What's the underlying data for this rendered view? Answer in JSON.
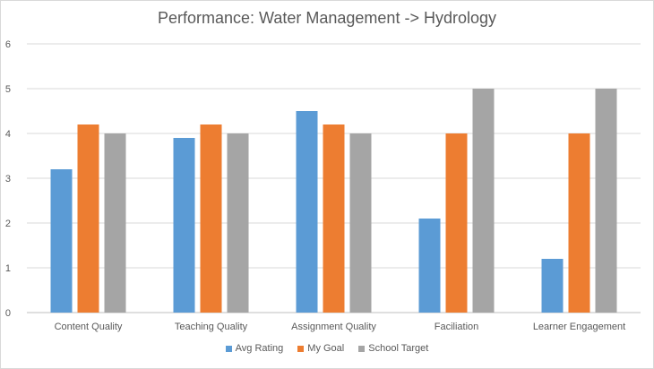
{
  "chart_data": {
    "type": "bar",
    "title": "Performance: Water Management -> Hydrology",
    "categories": [
      "Content Quality",
      "Teaching Quality",
      "Assignment Quality",
      "Faciliation",
      "Learner Engagement"
    ],
    "series": [
      {
        "name": "Avg Rating",
        "color": "#5b9bd5",
        "values": [
          3.2,
          3.9,
          4.5,
          2.1,
          1.2
        ]
      },
      {
        "name": "My Goal",
        "color": "#ed7d31",
        "values": [
          4.2,
          4.2,
          4.2,
          4.0,
          4.0
        ]
      },
      {
        "name": "School Target",
        "color": "#a5a5a5",
        "values": [
          4.0,
          4.0,
          4.0,
          5.0,
          5.0
        ]
      }
    ],
    "ylim": [
      0,
      6
    ],
    "yticks": [
      "0",
      "1",
      "2",
      "3",
      "4",
      "5",
      "6"
    ],
    "grid": true,
    "legend_position": "bottom"
  }
}
